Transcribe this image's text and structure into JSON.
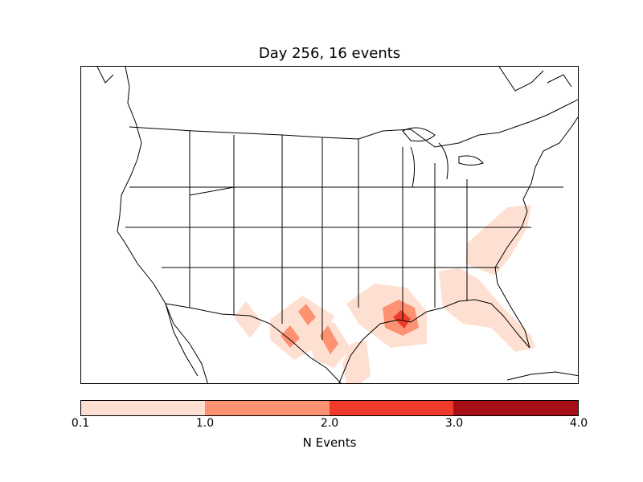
{
  "title": "Day 256, 16 events",
  "colorbar": {
    "label": "N Events",
    "ticks": [
      "0.1",
      "1.0",
      "2.0",
      "3.0",
      "4.0"
    ],
    "colors": [
      "#fee0d2",
      "#fc9272",
      "#ef3b2c",
      "#a50f15"
    ]
  },
  "chart_data": {
    "type": "heatmap",
    "region": "Continental United States",
    "value_scale": {
      "min": 0.1,
      "max": 4.0,
      "bins": [
        0.1,
        1.0,
        2.0,
        3.0,
        4.0
      ]
    },
    "event_areas": [
      {
        "area": "southeast Louisiana",
        "level": "2.0-3.0"
      },
      {
        "area": "Gulf coast Louisiana / east Texas",
        "level": "1.0-2.0"
      },
      {
        "area": "south-central Texas (two cells)",
        "level": "1.0-2.0"
      },
      {
        "area": "west Texas / south Texas / Florida / South Carolina / North Carolina",
        "level": "0.1-1.0"
      }
    ]
  }
}
